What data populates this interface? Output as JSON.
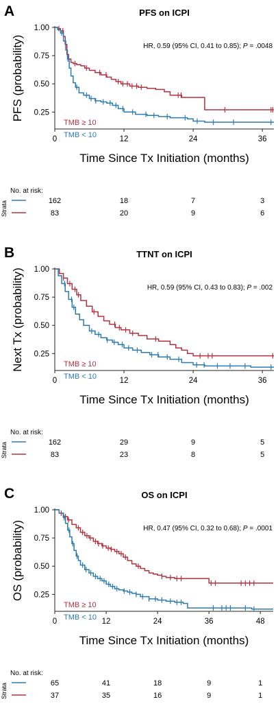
{
  "colors": {
    "high": "#b5303f",
    "low": "#2b7bb3",
    "axis": "#222222"
  },
  "chart_data": [
    {
      "panel": "A",
      "type": "line",
      "title": "PFS on ICPI",
      "ylabel": "PFS (probability)",
      "xlabel": "Time Since Tx Initiation (months)",
      "xlim": [
        0,
        38
      ],
      "ylim": [
        0.1,
        1.0
      ],
      "xticks": [
        0,
        12,
        24,
        36
      ],
      "yticks": [
        0.25,
        0.5,
        0.75,
        1.0
      ],
      "ytick_labels": [
        "0.25",
        "0.50",
        "0.75",
        "1.00"
      ],
      "hr_prefix": "HR, 0.59 (95% CI, 0.41 to 0.85); ",
      "hr_p": "P",
      "hr_value": " = .0048",
      "series": [
        {
          "name": "TMB ≥ 10",
          "color": "#b5303f",
          "x": [
            0,
            0.5,
            1,
            1.5,
            1.8,
            2.1,
            2.4,
            2.8,
            3.2,
            3.8,
            4.5,
            5.2,
            6,
            7,
            8,
            9,
            9.8,
            10.6,
            11.5,
            13,
            14.5,
            16,
            17.5,
            19,
            20,
            21,
            22,
            24,
            25.5,
            26,
            30,
            34,
            36,
            38
          ],
          "y": [
            1.0,
            0.99,
            0.97,
            0.92,
            0.85,
            0.76,
            0.72,
            0.69,
            0.68,
            0.67,
            0.66,
            0.64,
            0.62,
            0.6,
            0.58,
            0.56,
            0.54,
            0.52,
            0.5,
            0.48,
            0.47,
            0.46,
            0.45,
            0.43,
            0.4,
            0.4,
            0.38,
            0.38,
            0.38,
            0.27,
            0.27,
            0.27,
            0.27,
            0.27
          ],
          "censor_x": [
            0.7,
            1.4,
            3.5,
            5.5,
            7.8,
            8.9,
            11,
            11.8,
            12.6,
            13.4,
            14.2,
            15,
            21.4,
            21.9,
            29.5,
            37.5,
            37.8
          ]
        },
        {
          "name": "TMB < 10",
          "color": "#2b7bb3",
          "x": [
            0,
            0.5,
            1,
            1.5,
            1.9,
            2.2,
            2.5,
            2.8,
            3.2,
            3.6,
            4.2,
            5,
            6,
            7,
            8,
            9,
            10,
            11,
            12,
            14,
            16,
            18,
            20,
            22,
            23,
            24,
            26,
            30,
            34,
            38
          ],
          "y": [
            1.0,
            0.98,
            0.95,
            0.88,
            0.8,
            0.72,
            0.64,
            0.57,
            0.51,
            0.47,
            0.42,
            0.4,
            0.37,
            0.35,
            0.34,
            0.33,
            0.31,
            0.28,
            0.25,
            0.23,
            0.22,
            0.21,
            0.2,
            0.2,
            0.19,
            0.17,
            0.16,
            0.16,
            0.16,
            0.16
          ],
          "censor_x": [
            1.2,
            2.3,
            3.8,
            5.5,
            6.3,
            7.1,
            8.4,
            9.6,
            10.6,
            11.8,
            13.5,
            15.8,
            17.2,
            19.5,
            22.6,
            24.7,
            27.5,
            31,
            37.5
          ]
        }
      ],
      "legend": [
        "TMB ≥ 10",
        "TMB < 10"
      ],
      "risk_table": {
        "title": "No. at risk:",
        "strata_label": "Strata",
        "rows": [
          {
            "color": "#2b7bb3",
            "values": [
              "162",
              "18",
              "7",
              "3"
            ]
          },
          {
            "color": "#b5303f",
            "values": [
              "83",
              "20",
              "9",
              "6"
            ]
          }
        ]
      }
    },
    {
      "panel": "B",
      "type": "line",
      "title": "TTNT on ICPI",
      "ylabel": "Next Tx (probability)",
      "xlabel": "Time Since Tx Initiation (months)",
      "xlim": [
        0,
        38
      ],
      "ylim": [
        0.1,
        1.0
      ],
      "xticks": [
        0,
        12,
        24,
        36
      ],
      "yticks": [
        0.25,
        0.5,
        0.75,
        1.0
      ],
      "ytick_labels": [
        "0.25",
        "0.50",
        "0.75",
        "1.00"
      ],
      "hr_prefix": "HR, 0.59 (95% CI, 0.43 to 0.83); ",
      "hr_p": "P",
      "hr_value": " = .002",
      "series": [
        {
          "name": "TMB ≥ 10",
          "color": "#b5303f",
          "x": [
            0,
            0.8,
            1.5,
            2.2,
            3,
            3.8,
            4.5,
            5.5,
            6.5,
            7.5,
            8.5,
            9.5,
            10.5,
            11.5,
            13,
            14.5,
            16,
            18,
            20,
            21,
            22,
            23,
            24,
            26,
            30,
            34,
            38
          ],
          "y": [
            1.0,
            0.96,
            0.92,
            0.87,
            0.82,
            0.77,
            0.72,
            0.67,
            0.62,
            0.58,
            0.54,
            0.51,
            0.48,
            0.46,
            0.43,
            0.41,
            0.38,
            0.36,
            0.33,
            0.3,
            0.28,
            0.25,
            0.23,
            0.23,
            0.23,
            0.23,
            0.23
          ],
          "censor_x": [
            1.5,
            2.6,
            3.5,
            4.1,
            6.8,
            10.4,
            11.2,
            12.3,
            13.5,
            17.5,
            25.2,
            26.6,
            27.3,
            37.8
          ]
        },
        {
          "name": "TMB < 10",
          "color": "#2b7bb3",
          "x": [
            0,
            0.6,
            1.2,
            1.8,
            2.4,
            3,
            3.6,
            4.3,
            5,
            6,
            7,
            8,
            9,
            10,
            11,
            12,
            13.5,
            15,
            16.5,
            18,
            20,
            22,
            24,
            26,
            30,
            34,
            38
          ],
          "y": [
            1.0,
            0.94,
            0.87,
            0.8,
            0.73,
            0.66,
            0.6,
            0.55,
            0.5,
            0.45,
            0.42,
            0.39,
            0.37,
            0.35,
            0.33,
            0.3,
            0.28,
            0.26,
            0.24,
            0.22,
            0.2,
            0.17,
            0.15,
            0.14,
            0.14,
            0.13,
            0.13
          ],
          "censor_x": [
            1.7,
            2.9,
            3.3,
            6.4,
            7.6,
            9.1,
            10.3,
            11.7,
            12.8,
            14.3,
            16.8,
            17.9,
            19.5,
            21.5,
            24.6,
            25.9,
            28.2,
            30.4,
            33,
            37.5
          ]
        }
      ],
      "legend": [
        "TMB ≥ 10",
        "TMB < 10"
      ],
      "risk_table": {
        "title": "No. at risk:",
        "strata_label": "Strata",
        "rows": [
          {
            "color": "#2b7bb3",
            "values": [
              "162",
              "29",
              "9",
              "5"
            ]
          },
          {
            "color": "#b5303f",
            "values": [
              "83",
              "23",
              "8",
              "5"
            ]
          }
        ]
      }
    },
    {
      "panel": "C",
      "type": "line",
      "title": "OS on ICPI",
      "ylabel": "OS (probability)",
      "xlabel": "Time Since Tx Initiation (months)",
      "xlim": [
        0,
        51
      ],
      "ylim": [
        0.1,
        1.0
      ],
      "xticks": [
        0,
        12,
        24,
        36,
        48
      ],
      "yticks": [
        0.25,
        0.5,
        0.75,
        1.0
      ],
      "ytick_labels": [
        "0.25",
        "0.50",
        "0.75",
        "1.00"
      ],
      "hr_prefix": "HR, 0.47 (95% CI, 0.32 to 0.68); ",
      "hr_p": "P",
      "hr_value": " = .0001",
      "series": [
        {
          "name": "TMB ≥ 10",
          "color": "#b5303f",
          "x": [
            0,
            1,
            2,
            3,
            4,
            5,
            6,
            7,
            8,
            9,
            10,
            11,
            12,
            13,
            14,
            15,
            16,
            17,
            18,
            19,
            20,
            21,
            22,
            23,
            24,
            25,
            26,
            27,
            28,
            30,
            34,
            36,
            38,
            42,
            46,
            51
          ],
          "y": [
            1.0,
            0.97,
            0.94,
            0.91,
            0.87,
            0.84,
            0.8,
            0.77,
            0.75,
            0.72,
            0.7,
            0.68,
            0.66,
            0.65,
            0.63,
            0.61,
            0.58,
            0.55,
            0.52,
            0.5,
            0.48,
            0.46,
            0.44,
            0.43,
            0.42,
            0.41,
            0.4,
            0.4,
            0.39,
            0.39,
            0.39,
            0.35,
            0.35,
            0.35,
            0.35,
            0.35
          ],
          "censor_x": [
            1.5,
            2.5,
            3.2,
            5.5,
            6.5,
            7.5,
            8.3,
            9.5,
            10.2,
            11.2,
            12.5,
            13.2,
            14.5,
            15.5,
            16.5,
            19.5,
            25,
            27,
            28.5,
            29.5,
            36.5,
            37.5,
            43.5,
            44.5,
            45.5,
            46.5
          ]
        },
        {
          "name": "TMB < 10",
          "color": "#2b7bb3",
          "x": [
            0,
            1,
            2,
            2.5,
            3,
            3.5,
            4,
            4.5,
            5,
            5.5,
            6,
            7,
            8,
            9,
            10,
            11,
            12,
            13,
            14,
            15,
            16,
            17,
            18,
            19,
            20,
            22,
            24,
            26,
            28,
            30,
            31,
            34,
            38,
            42,
            46,
            51
          ],
          "y": [
            1.0,
            0.97,
            0.93,
            0.88,
            0.82,
            0.76,
            0.7,
            0.64,
            0.59,
            0.55,
            0.51,
            0.47,
            0.44,
            0.41,
            0.39,
            0.37,
            0.34,
            0.32,
            0.3,
            0.29,
            0.28,
            0.27,
            0.26,
            0.25,
            0.23,
            0.21,
            0.2,
            0.19,
            0.18,
            0.17,
            0.13,
            0.13,
            0.13,
            0.13,
            0.12,
            0.12
          ],
          "censor_x": [
            2.2,
            3.3,
            4.2,
            5.2,
            6.5,
            7.3,
            8.4,
            9.5,
            10.6,
            11.5,
            12.6,
            13.5,
            14.5,
            16.2,
            17.5,
            19,
            20.5,
            22,
            23.5,
            25,
            27,
            28.5,
            29.5,
            37,
            39,
            40,
            41,
            44.5,
            46.5
          ]
        }
      ],
      "legend": [
        "TMB ≥ 10",
        "TMB < 10"
      ],
      "risk_table": {
        "title": "No. at risk:",
        "strata_label": "Strata",
        "rows": [
          {
            "color": "#2b7bb3",
            "values": [
              "65",
              "41",
              "18",
              "9",
              "1"
            ]
          },
          {
            "color": "#b5303f",
            "values": [
              "37",
              "35",
              "16",
              "9",
              "1"
            ]
          }
        ]
      }
    }
  ]
}
